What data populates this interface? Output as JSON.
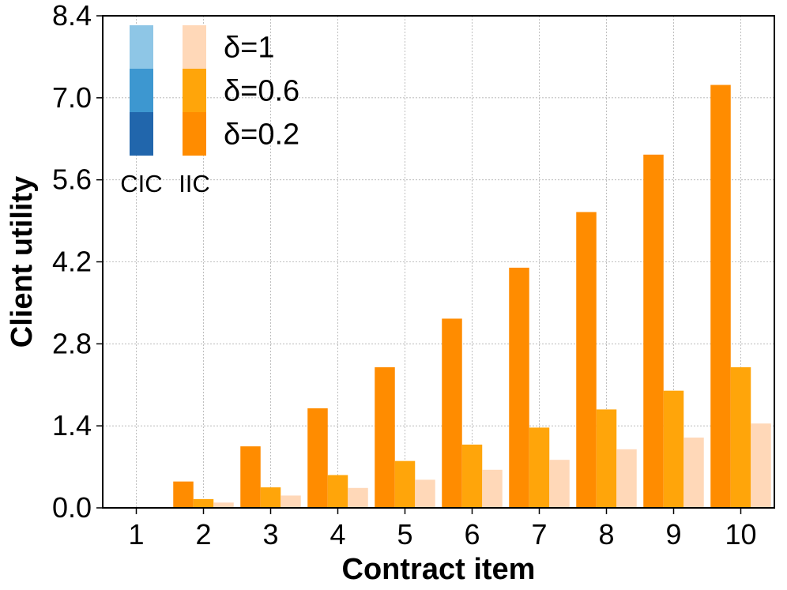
{
  "chart_data": {
    "type": "bar",
    "xlabel": "Contract item",
    "ylabel": "Client utility",
    "ylim": [
      0,
      8.4
    ],
    "yticks": [
      "0.0",
      "1.4",
      "2.8",
      "4.2",
      "5.6",
      "7.0",
      "8.4"
    ],
    "categories": [
      "1",
      "2",
      "3",
      "4",
      "5",
      "6",
      "7",
      "8",
      "9",
      "10"
    ],
    "grid": true,
    "legend_position": "top-left",
    "legend": {
      "column_labels": [
        "CIC",
        "IIC"
      ],
      "entries": [
        "δ=1",
        "δ=0.6",
        "δ=0.2"
      ],
      "cic_colors": [
        "#8ec6e6",
        "#3d97d0",
        "#2166ac"
      ],
      "iic_colors": [
        "#ffd8b8",
        "#ffa50a",
        "#ff8c00"
      ]
    },
    "series": [
      {
        "name": "δ=0.2",
        "color": "#ff8c00",
        "values": [
          0.0,
          0.45,
          1.05,
          1.7,
          2.4,
          3.23,
          4.1,
          5.05,
          6.03,
          7.22
        ]
      },
      {
        "name": "δ=0.6",
        "color": "#ffa50a",
        "values": [
          0.0,
          0.15,
          0.35,
          0.56,
          0.8,
          1.08,
          1.37,
          1.68,
          2.0,
          2.4
        ]
      },
      {
        "name": "δ=1",
        "color": "#ffd8b8",
        "values": [
          0.0,
          0.09,
          0.21,
          0.34,
          0.48,
          0.65,
          0.82,
          1.0,
          1.2,
          1.44
        ]
      }
    ]
  }
}
